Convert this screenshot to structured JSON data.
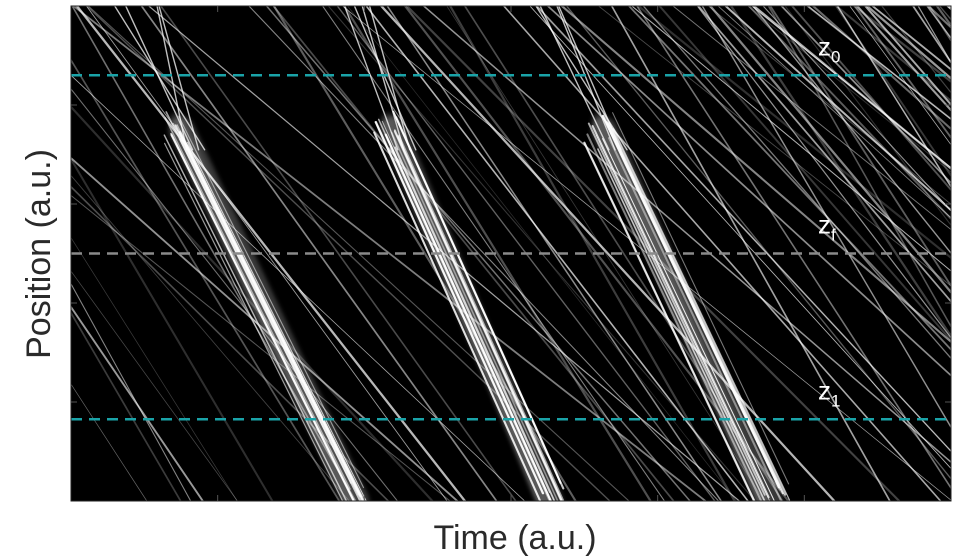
{
  "chart_data": {
    "type": "heatmap",
    "title": "",
    "xlabel": "Time (a.u.)",
    "ylabel": "Position (a.u.)",
    "colormap": "grayscale",
    "background_color": "#000000",
    "grid": false,
    "legend": "none",
    "reference_lines": [
      {
        "id": "z0",
        "base": "z",
        "subscript": "0",
        "position_fraction": 0.14,
        "color": "#1aa3a8",
        "style": "dashed"
      },
      {
        "id": "zf",
        "base": "z",
        "subscript": "f",
        "position_fraction": 0.5,
        "color": "#8a8a8a",
        "style": "dashed"
      },
      {
        "id": "z1",
        "base": "z",
        "subscript": "1",
        "position_fraction": 0.835,
        "color": "#1aa3a8",
        "style": "dashed"
      }
    ],
    "bunches": [
      {
        "start_time_fraction": 0.12,
        "end_time_fraction": 0.33
      },
      {
        "start_time_fraction": 0.36,
        "end_time_fraction": 0.55
      },
      {
        "start_time_fraction": 0.6,
        "end_time_fraction": 0.8
      }
    ]
  }
}
